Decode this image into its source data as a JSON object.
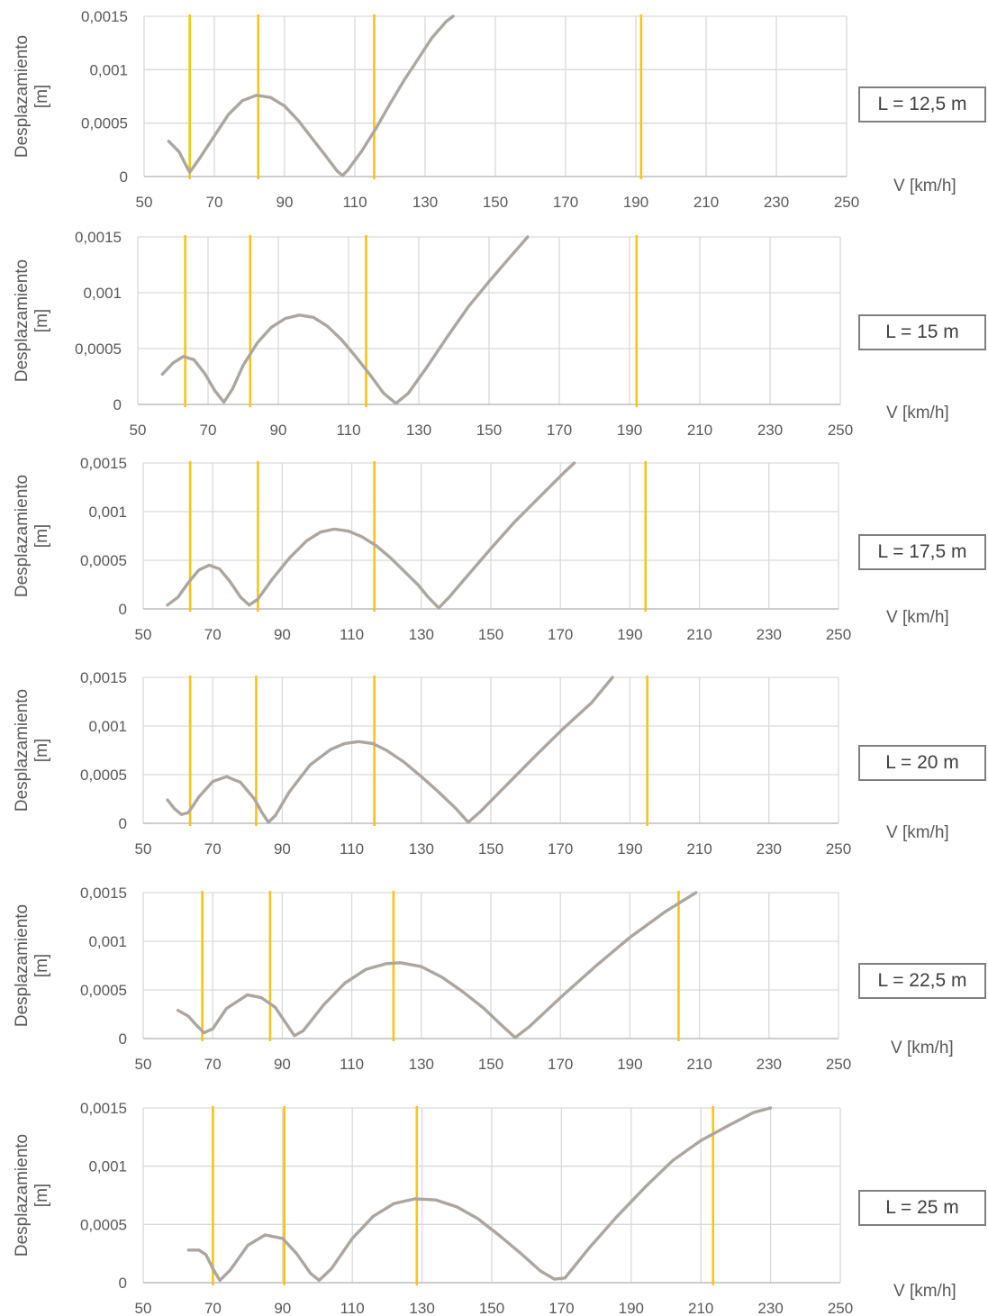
{
  "chart_data": [
    {
      "type": "line",
      "label": "L = 12,5 m",
      "ylabel": [
        "Desplazamiento",
        "[m]"
      ],
      "xlabel": "V [km/h]",
      "xlim": [
        50,
        250
      ],
      "ylim": [
        0,
        0.0015
      ],
      "x_ticks": [
        "50",
        "70",
        "90",
        "110",
        "130",
        "150",
        "170",
        "190",
        "210",
        "230",
        "250"
      ],
      "y_ticks": [
        "0",
        "0,0005",
        "0,001",
        "0,0015"
      ],
      "grid": true,
      "series": [
        {
          "values": [
            [
              57,
              0.00033
            ],
            [
              60,
              0.00023
            ],
            [
              62,
              0.0001
            ],
            [
              63,
              4e-05
            ],
            [
              66,
              0.00018
            ],
            [
              70,
              0.00038
            ],
            [
              74,
              0.00058
            ],
            [
              78,
              0.00071
            ],
            [
              82,
              0.00076
            ],
            [
              86,
              0.00074
            ],
            [
              90,
              0.00066
            ],
            [
              94,
              0.00052
            ],
            [
              98,
              0.00035
            ],
            [
              102,
              0.00018
            ],
            [
              105,
              5e-05
            ],
            [
              106.5,
              1e-05
            ],
            [
              108,
              6e-05
            ],
            [
              112,
              0.00024
            ],
            [
              116,
              0.00045
            ],
            [
              120,
              0.00068
            ],
            [
              124,
              0.0009
            ],
            [
              128,
              0.0011
            ],
            [
              132,
              0.0013
            ],
            [
              136,
              0.00145
            ],
            [
              138,
              0.0015
            ]
          ]
        }
      ],
      "vlines": [
        63,
        82.5,
        115.5,
        191.5
      ],
      "colors": {
        "curve": "#ada69f",
        "vline": "#f5c518"
      }
    },
    {
      "type": "line",
      "label": "L = 15 m",
      "ylabel": [
        "Desplazamiento",
        "[m]"
      ],
      "xlabel": "V [km/h]",
      "xlim": [
        50,
        250
      ],
      "ylim": [
        0,
        0.0015
      ],
      "x_ticks": [
        "50",
        "70",
        "90",
        "110",
        "130",
        "150",
        "170",
        "190",
        "210",
        "230",
        "250"
      ],
      "y_ticks": [
        "0",
        "0,0005",
        "0,001",
        "0,0015"
      ],
      "grid": true,
      "series": [
        {
          "values": [
            [
              57,
              0.00027
            ],
            [
              60,
              0.00037
            ],
            [
              63,
              0.00043
            ],
            [
              66,
              0.0004
            ],
            [
              69,
              0.00028
            ],
            [
              72,
              0.00012
            ],
            [
              74.5,
              2e-05
            ],
            [
              77,
              0.00014
            ],
            [
              80,
              0.00035
            ],
            [
              84,
              0.00055
            ],
            [
              88,
              0.00069
            ],
            [
              92,
              0.00077
            ],
            [
              96,
              0.0008
            ],
            [
              100,
              0.00078
            ],
            [
              104,
              0.0007
            ],
            [
              108,
              0.00058
            ],
            [
              112,
              0.00043
            ],
            [
              116,
              0.00027
            ],
            [
              120,
              0.0001
            ],
            [
              123.5,
              1e-05
            ],
            [
              127,
              0.0001
            ],
            [
              132,
              0.00032
            ],
            [
              138,
              0.0006
            ],
            [
              144,
              0.00087
            ],
            [
              150,
              0.0011
            ],
            [
              156,
              0.00132
            ],
            [
              161,
              0.0015
            ]
          ]
        }
      ],
      "vlines": [
        63.5,
        82,
        115,
        192
      ],
      "colors": {
        "curve": "#ada69f",
        "vline": "#f5c518"
      }
    },
    {
      "type": "line",
      "label": "L = 17,5 m",
      "ylabel": [
        "Desplazamiento",
        "[m]"
      ],
      "xlabel": "V [km/h]",
      "xlim": [
        50,
        250
      ],
      "ylim": [
        0,
        0.0015
      ],
      "x_ticks": [
        "50",
        "70",
        "90",
        "110",
        "130",
        "150",
        "170",
        "190",
        "210",
        "230",
        "250"
      ],
      "y_ticks": [
        "0",
        "0,0005",
        "0,001",
        "0,0015"
      ],
      "grid": true,
      "series": [
        {
          "values": [
            [
              57,
              4e-05
            ],
            [
              60,
              0.00012
            ],
            [
              63,
              0.00027
            ],
            [
              66,
              0.0004
            ],
            [
              69,
              0.00045
            ],
            [
              72,
              0.00041
            ],
            [
              75,
              0.00028
            ],
            [
              78,
              0.00012
            ],
            [
              80.5,
              4e-05
            ],
            [
              83,
              0.0001
            ],
            [
              87,
              0.0003
            ],
            [
              92,
              0.00052
            ],
            [
              97,
              0.0007
            ],
            [
              101,
              0.00079
            ],
            [
              105,
              0.00082
            ],
            [
              109,
              0.0008
            ],
            [
              113,
              0.00074
            ],
            [
              117,
              0.00065
            ],
            [
              121,
              0.00053
            ],
            [
              125,
              0.00039
            ],
            [
              129,
              0.00025
            ],
            [
              132,
              0.00012
            ],
            [
              135,
              1e-05
            ],
            [
              138,
              0.00012
            ],
            [
              143,
              0.00033
            ],
            [
              150,
              0.00062
            ],
            [
              157,
              0.0009
            ],
            [
              164,
              0.00115
            ],
            [
              171,
              0.0014
            ],
            [
              174,
              0.0015
            ]
          ]
        }
      ],
      "vlines": [
        63.5,
        83,
        116.5,
        194.5
      ],
      "colors": {
        "curve": "#ada69f",
        "vline": "#f5c518"
      }
    },
    {
      "type": "line",
      "label": "L = 20 m",
      "ylabel": [
        "Desplazamiento",
        "[m]"
      ],
      "xlabel": "V [km/h]",
      "xlim": [
        50,
        250
      ],
      "ylim": [
        0,
        0.0015
      ],
      "x_ticks": [
        "50",
        "70",
        "90",
        "110",
        "130",
        "150",
        "170",
        "190",
        "210",
        "230",
        "250"
      ],
      "y_ticks": [
        "0",
        "0,0005",
        "0,001",
        "0,0015"
      ],
      "grid": true,
      "series": [
        {
          "values": [
            [
              57,
              0.00024
            ],
            [
              59,
              0.00015
            ],
            [
              61,
              9e-05
            ],
            [
              63,
              0.00011
            ],
            [
              66,
              0.00027
            ],
            [
              70,
              0.00043
            ],
            [
              74,
              0.00048
            ],
            [
              78,
              0.00042
            ],
            [
              82,
              0.00025
            ],
            [
              84,
              0.00012
            ],
            [
              86,
              1e-05
            ],
            [
              88,
              8e-05
            ],
            [
              92,
              0.00032
            ],
            [
              98,
              0.0006
            ],
            [
              104,
              0.00076
            ],
            [
              108,
              0.00082
            ],
            [
              112,
              0.00084
            ],
            [
              116,
              0.00082
            ],
            [
              120,
              0.00075
            ],
            [
              125,
              0.00063
            ],
            [
              130,
              0.00048
            ],
            [
              135,
              0.00032
            ],
            [
              140,
              0.00015
            ],
            [
              143.5,
              1e-05
            ],
            [
              147,
              0.00012
            ],
            [
              155,
              0.00041
            ],
            [
              163,
              0.0007
            ],
            [
              171,
              0.00098
            ],
            [
              179,
              0.00124
            ],
            [
              185,
              0.0015
            ]
          ]
        }
      ],
      "vlines": [
        63.5,
        82.5,
        116.5,
        195
      ],
      "colors": {
        "curve": "#ada69f",
        "vline": "#f5c518"
      }
    },
    {
      "type": "line",
      "label": "L = 22,5 m",
      "ylabel": [
        "Desplazamiento",
        "[m]"
      ],
      "xlabel": "V [km/h]",
      "xlim": [
        50,
        250
      ],
      "ylim": [
        0,
        0.0015
      ],
      "x_ticks": [
        "50",
        "70",
        "90",
        "110",
        "130",
        "150",
        "170",
        "190",
        "210",
        "230",
        "250"
      ],
      "y_ticks": [
        "0",
        "0,0005",
        "0,001",
        "0,0015"
      ],
      "grid": true,
      "series": [
        {
          "values": [
            [
              60,
              0.00029
            ],
            [
              63,
              0.00023
            ],
            [
              65.5,
              0.00013
            ],
            [
              67.5,
              6e-05
            ],
            [
              70,
              0.0001
            ],
            [
              74,
              0.00031
            ],
            [
              80,
              0.00045
            ],
            [
              84,
              0.00042
            ],
            [
              88,
              0.00032
            ],
            [
              91,
              0.00016
            ],
            [
              93.5,
              3e-05
            ],
            [
              96,
              8e-05
            ],
            [
              102,
              0.00035
            ],
            [
              108,
              0.00057
            ],
            [
              114,
              0.00071
            ],
            [
              120,
              0.00077
            ],
            [
              124,
              0.00078
            ],
            [
              130,
              0.00074
            ],
            [
              136,
              0.00063
            ],
            [
              142,
              0.00048
            ],
            [
              148,
              0.00031
            ],
            [
              153,
              0.00014
            ],
            [
              157,
              1e-05
            ],
            [
              161,
              0.00012
            ],
            [
              170,
              0.00042
            ],
            [
              180,
              0.00074
            ],
            [
              190,
              0.00104
            ],
            [
              200,
              0.0013
            ],
            [
              209,
              0.0015
            ]
          ]
        }
      ],
      "vlines": [
        67,
        86.5,
        122,
        204
      ],
      "colors": {
        "curve": "#ada69f",
        "vline": "#f5c518"
      }
    },
    {
      "type": "line",
      "label": "L = 25 m",
      "ylabel": [
        "Desplazamiento",
        "[m]"
      ],
      "xlabel": "V [km/h]",
      "xlim": [
        50,
        250
      ],
      "ylim": [
        0,
        0.0015
      ],
      "x_ticks": [
        "50",
        "70",
        "90",
        "110",
        "130",
        "150",
        "170",
        "190",
        "210",
        "230",
        "250"
      ],
      "y_ticks": [
        "0",
        "0,0005",
        "0,001",
        "0,0015"
      ],
      "grid": true,
      "series": [
        {
          "values": [
            [
              63,
              0.00028
            ],
            [
              66,
              0.00028
            ],
            [
              68,
              0.00024
            ],
            [
              70,
              0.00012
            ],
            [
              72,
              2e-05
            ],
            [
              75,
              0.00011
            ],
            [
              80,
              0.00032
            ],
            [
              85,
              0.00041
            ],
            [
              90,
              0.00038
            ],
            [
              94,
              0.00025
            ],
            [
              98,
              8e-05
            ],
            [
              100.5,
              2e-05
            ],
            [
              104,
              0.00012
            ],
            [
              110,
              0.00038
            ],
            [
              116,
              0.00057
            ],
            [
              122,
              0.00068
            ],
            [
              128,
              0.00072
            ],
            [
              134,
              0.00071
            ],
            [
              140,
              0.00065
            ],
            [
              146,
              0.00055
            ],
            [
              152,
              0.00041
            ],
            [
              158,
              0.00026
            ],
            [
              164,
              0.0001
            ],
            [
              168,
              3e-05
            ],
            [
              171,
              4e-05
            ],
            [
              178,
              0.0003
            ],
            [
              186,
              0.00057
            ],
            [
              194,
              0.00082
            ],
            [
              202,
              0.00105
            ],
            [
              210,
              0.00122
            ],
            [
              218,
              0.00135
            ],
            [
              225,
              0.00146
            ],
            [
              230,
              0.0015
            ]
          ]
        }
      ],
      "vlines": [
        70,
        90.5,
        128.5,
        213.5
      ],
      "colors": {
        "curve": "#ada69f",
        "vline": "#f5c518"
      }
    }
  ]
}
